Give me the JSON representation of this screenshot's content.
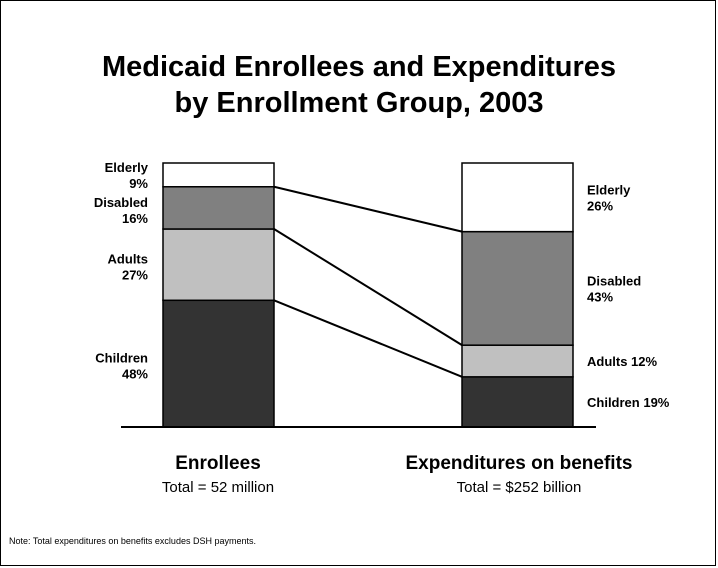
{
  "chart_data": {
    "type": "bar",
    "stacked": true,
    "percent": true,
    "title_lines": [
      "Medicaid Enrollees and Expenditures",
      "by Enrollment Group, 2003"
    ],
    "categories": [
      {
        "name": "Enrollees",
        "subtitle": "Total = 52 million"
      },
      {
        "name": "Expenditures on benefits",
        "subtitle": "Total = $252 billion"
      }
    ],
    "series": [
      {
        "name": "Children",
        "color": "#333333",
        "values": [
          48,
          19
        ]
      },
      {
        "name": "Adults",
        "color": "#c0c0c0",
        "values": [
          27,
          12
        ]
      },
      {
        "name": "Disabled",
        "color": "#808080",
        "values": [
          16,
          43
        ]
      },
      {
        "name": "Elderly",
        "color": "#ffffff",
        "values": [
          9,
          26
        ]
      }
    ],
    "labels": {
      "left": [
        {
          "series": "Elderly",
          "name": "Elderly",
          "value": "9%"
        },
        {
          "series": "Disabled",
          "name": "Disabled",
          "value": "16%"
        },
        {
          "series": "Adults",
          "name": "Adults",
          "value": "27%"
        },
        {
          "series": "Children",
          "name": "Children",
          "value": "48%"
        }
      ],
      "right": [
        {
          "series": "Elderly",
          "lines": [
            "Elderly",
            "26%"
          ]
        },
        {
          "series": "Disabled",
          "lines": [
            "Disabled",
            "43%"
          ]
        },
        {
          "series": "Adults",
          "lines": [
            "Adults 12%"
          ]
        },
        {
          "series": "Children",
          "lines": [
            "Children 19%"
          ]
        }
      ]
    },
    "ylim": [
      0,
      100
    ],
    "grid": false,
    "note": "Note: Total expenditures on benefits excludes DSH payments."
  }
}
